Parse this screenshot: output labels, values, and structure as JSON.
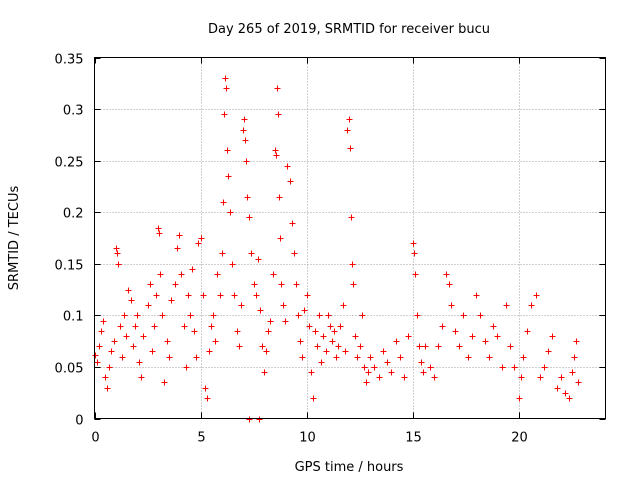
{
  "chart_data": {
    "type": "scatter",
    "title": "Day 265 of 2019, SRMTID for receiver bucu",
    "xlabel": "GPS time / hours",
    "ylabel": "SRMTID / TECUs",
    "xlim": [
      0,
      24.1
    ],
    "ylim": [
      0,
      0.35
    ],
    "grid": true,
    "marker": "+",
    "color": "#ff0000",
    "x_ticks": [
      {
        "value": 0,
        "label": "0"
      },
      {
        "value": 5,
        "label": "5"
      },
      {
        "value": 10,
        "label": "10"
      },
      {
        "value": 15,
        "label": "15"
      },
      {
        "value": 20,
        "label": "20"
      }
    ],
    "y_ticks": [
      {
        "value": 0,
        "label": "0"
      },
      {
        "value": 0.05,
        "label": "0.05"
      },
      {
        "value": 0.1,
        "label": "0.1"
      },
      {
        "value": 0.15,
        "label": "0.15"
      },
      {
        "value": 0.2,
        "label": "0.2"
      },
      {
        "value": 0.25,
        "label": "0.25"
      },
      {
        "value": 0.3,
        "label": "0.3"
      },
      {
        "value": 0.35,
        "label": "0.35"
      }
    ],
    "series": [
      {
        "name": "SRMTID",
        "points": [
          [
            0.0,
            0.062
          ],
          [
            0.1,
            0.055
          ],
          [
            0.2,
            0.07
          ],
          [
            0.3,
            0.085
          ],
          [
            0.4,
            0.095
          ],
          [
            0.5,
            0.04
          ],
          [
            0.6,
            0.03
          ],
          [
            0.7,
            0.05
          ],
          [
            0.8,
            0.065
          ],
          [
            0.9,
            0.075
          ],
          [
            1.0,
            0.165
          ],
          [
            1.05,
            0.16
          ],
          [
            1.1,
            0.15
          ],
          [
            1.2,
            0.09
          ],
          [
            1.3,
            0.06
          ],
          [
            1.4,
            0.1
          ],
          [
            1.5,
            0.08
          ],
          [
            1.6,
            0.125
          ],
          [
            1.7,
            0.115
          ],
          [
            1.8,
            0.07
          ],
          [
            1.9,
            0.09
          ],
          [
            2.0,
            0.1
          ],
          [
            2.1,
            0.055
          ],
          [
            2.2,
            0.04
          ],
          [
            2.3,
            0.08
          ],
          [
            2.5,
            0.11
          ],
          [
            2.6,
            0.13
          ],
          [
            2.7,
            0.065
          ],
          [
            2.8,
            0.09
          ],
          [
            2.9,
            0.12
          ],
          [
            3.0,
            0.185
          ],
          [
            3.05,
            0.18
          ],
          [
            3.1,
            0.14
          ],
          [
            3.2,
            0.1
          ],
          [
            3.3,
            0.035
          ],
          [
            3.4,
            0.075
          ],
          [
            3.5,
            0.06
          ],
          [
            3.6,
            0.115
          ],
          [
            3.8,
            0.13
          ],
          [
            3.9,
            0.165
          ],
          [
            4.0,
            0.178
          ],
          [
            4.1,
            0.14
          ],
          [
            4.2,
            0.09
          ],
          [
            4.3,
            0.05
          ],
          [
            4.4,
            0.12
          ],
          [
            4.5,
            0.1
          ],
          [
            4.6,
            0.145
          ],
          [
            4.7,
            0.085
          ],
          [
            4.8,
            0.06
          ],
          [
            4.9,
            0.17
          ],
          [
            5.0,
            0.175
          ],
          [
            5.1,
            0.12
          ],
          [
            5.2,
            0.03
          ],
          [
            5.3,
            0.02
          ],
          [
            5.4,
            0.065
          ],
          [
            5.5,
            0.09
          ],
          [
            5.6,
            0.1
          ],
          [
            5.7,
            0.075
          ],
          [
            5.8,
            0.14
          ],
          [
            5.9,
            0.12
          ],
          [
            6.0,
            0.16
          ],
          [
            6.05,
            0.21
          ],
          [
            6.1,
            0.295
          ],
          [
            6.15,
            0.33
          ],
          [
            6.2,
            0.32
          ],
          [
            6.25,
            0.26
          ],
          [
            6.3,
            0.235
          ],
          [
            6.4,
            0.2
          ],
          [
            6.5,
            0.15
          ],
          [
            6.6,
            0.12
          ],
          [
            6.7,
            0.085
          ],
          [
            6.8,
            0.07
          ],
          [
            6.9,
            0.11
          ],
          [
            7.0,
            0.28
          ],
          [
            7.05,
            0.29
          ],
          [
            7.1,
            0.27
          ],
          [
            7.15,
            0.25
          ],
          [
            7.2,
            0.215
          ],
          [
            7.3,
            0.195
          ],
          [
            7.4,
            0.16
          ],
          [
            7.5,
            0.13
          ],
          [
            7.6,
            0.12
          ],
          [
            7.7,
            0.155
          ],
          [
            7.8,
            0.105
          ],
          [
            7.9,
            0.07
          ],
          [
            8.0,
            0.045
          ],
          [
            8.1,
            0.065
          ],
          [
            8.2,
            0.085
          ],
          [
            8.3,
            0.095
          ],
          [
            8.4,
            0.14
          ],
          [
            8.5,
            0.26
          ],
          [
            8.55,
            0.255
          ],
          [
            8.6,
            0.32
          ],
          [
            8.65,
            0.295
          ],
          [
            8.7,
            0.215
          ],
          [
            8.75,
            0.175
          ],
          [
            8.8,
            0.13
          ],
          [
            8.9,
            0.11
          ],
          [
            9.0,
            0.095
          ],
          [
            9.1,
            0.245
          ],
          [
            9.2,
            0.23
          ],
          [
            9.3,
            0.19
          ],
          [
            9.4,
            0.16
          ],
          [
            9.5,
            0.13
          ],
          [
            9.6,
            0.1
          ],
          [
            9.7,
            0.075
          ],
          [
            9.8,
            0.06
          ],
          [
            9.9,
            0.105
          ],
          [
            10.0,
            0.12
          ],
          [
            10.1,
            0.09
          ],
          [
            10.2,
            0.045
          ],
          [
            10.3,
            0.02
          ],
          [
            10.4,
            0.085
          ],
          [
            10.5,
            0.07
          ],
          [
            10.6,
            0.1
          ],
          [
            10.7,
            0.055
          ],
          [
            10.8,
            0.08
          ],
          [
            10.9,
            0.065
          ],
          [
            11.0,
            0.1
          ],
          [
            11.1,
            0.09
          ],
          [
            11.2,
            0.075
          ],
          [
            11.3,
            0.085
          ],
          [
            11.4,
            0.06
          ],
          [
            11.5,
            0.07
          ],
          [
            11.6,
            0.09
          ],
          [
            11.7,
            0.11
          ],
          [
            11.8,
            0.065
          ],
          [
            11.9,
            0.28
          ],
          [
            12.0,
            0.29
          ],
          [
            12.05,
            0.262
          ],
          [
            12.1,
            0.195
          ],
          [
            12.15,
            0.15
          ],
          [
            12.2,
            0.13
          ],
          [
            12.3,
            0.08
          ],
          [
            12.4,
            0.06
          ],
          [
            12.5,
            0.07
          ],
          [
            12.6,
            0.1
          ],
          [
            12.7,
            0.05
          ],
          [
            12.8,
            0.035
          ],
          [
            12.9,
            0.045
          ],
          [
            13.0,
            0.06
          ],
          [
            13.2,
            0.05
          ],
          [
            13.4,
            0.04
          ],
          [
            13.6,
            0.065
          ],
          [
            13.8,
            0.055
          ],
          [
            14.0,
            0.045
          ],
          [
            14.2,
            0.075
          ],
          [
            14.4,
            0.06
          ],
          [
            14.6,
            0.04
          ],
          [
            14.8,
            0.08
          ],
          [
            15.0,
            0.17
          ],
          [
            15.05,
            0.16
          ],
          [
            15.1,
            0.14
          ],
          [
            15.2,
            0.1
          ],
          [
            15.3,
            0.07
          ],
          [
            15.4,
            0.055
          ],
          [
            15.5,
            0.045
          ],
          [
            15.6,
            0.07
          ],
          [
            15.8,
            0.05
          ],
          [
            16.0,
            0.04
          ],
          [
            16.2,
            0.07
          ],
          [
            16.4,
            0.09
          ],
          [
            16.6,
            0.14
          ],
          [
            16.7,
            0.13
          ],
          [
            16.8,
            0.11
          ],
          [
            17.0,
            0.085
          ],
          [
            17.2,
            0.07
          ],
          [
            17.4,
            0.1
          ],
          [
            17.6,
            0.06
          ],
          [
            17.8,
            0.08
          ],
          [
            18.0,
            0.12
          ],
          [
            18.2,
            0.1
          ],
          [
            18.4,
            0.075
          ],
          [
            18.6,
            0.06
          ],
          [
            18.8,
            0.09
          ],
          [
            19.0,
            0.08
          ],
          [
            19.2,
            0.05
          ],
          [
            19.4,
            0.11
          ],
          [
            19.6,
            0.07
          ],
          [
            19.8,
            0.05
          ],
          [
            20.0,
            0.02
          ],
          [
            20.1,
            0.04
          ],
          [
            20.2,
            0.06
          ],
          [
            20.4,
            0.085
          ],
          [
            20.6,
            0.11
          ],
          [
            20.8,
            0.12
          ],
          [
            21.0,
            0.04
          ],
          [
            21.2,
            0.05
          ],
          [
            21.4,
            0.065
          ],
          [
            21.6,
            0.08
          ],
          [
            21.8,
            0.03
          ],
          [
            22.0,
            0.04
          ],
          [
            22.2,
            0.025
          ],
          [
            22.4,
            0.02
          ],
          [
            22.5,
            0.045
          ],
          [
            22.6,
            0.06
          ],
          [
            22.7,
            0.075
          ],
          [
            22.8,
            0.035
          ]
        ]
      }
    ],
    "flat_points": [
      [
        7.3,
        0.0
      ],
      [
        7.75,
        0.0
      ]
    ]
  }
}
